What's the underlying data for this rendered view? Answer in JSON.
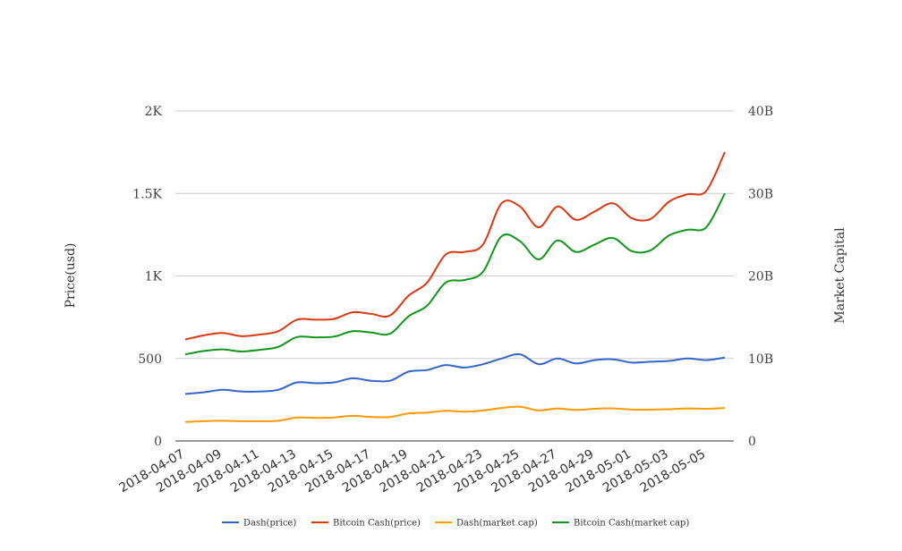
{
  "chart_data": {
    "type": "line",
    "title": "",
    "ylabel_left": "Price(usd)",
    "ylabel_right": "Market Capital",
    "grid": true,
    "legend_position": "bottom",
    "y_left": {
      "range": [
        0,
        2000
      ],
      "ticks": [
        0,
        500,
        1000,
        1500,
        2000
      ],
      "tick_labels": [
        "0",
        "500",
        "1K",
        "1.5K",
        "2K"
      ]
    },
    "y_right": {
      "range": [
        0,
        40000000000
      ],
      "ticks": [
        0,
        10000000000,
        20000000000,
        30000000000,
        40000000000
      ],
      "tick_labels": [
        "0",
        "10B",
        "20B",
        "30B",
        "40B"
      ]
    },
    "x_tick_labels": [
      "2018-04-07",
      "2018-04-09",
      "2018-04-11",
      "2018-04-13",
      "2018-04-15",
      "2018-04-17",
      "2018-04-19",
      "2018-04-21",
      "2018-04-23",
      "2018-04-25",
      "2018-04-27",
      "2018-04-29",
      "2018-05-01",
      "2018-05-03",
      "2018-05-05"
    ],
    "x": [
      "2018-04-07",
      "2018-04-08",
      "2018-04-09",
      "2018-04-10",
      "2018-04-11",
      "2018-04-12",
      "2018-04-13",
      "2018-04-14",
      "2018-04-15",
      "2018-04-16",
      "2018-04-17",
      "2018-04-18",
      "2018-04-19",
      "2018-04-20",
      "2018-04-21",
      "2018-04-22",
      "2018-04-23",
      "2018-04-24",
      "2018-04-25",
      "2018-04-26",
      "2018-04-27",
      "2018-04-28",
      "2018-04-29",
      "2018-04-30",
      "2018-05-01",
      "2018-05-02",
      "2018-05-03",
      "2018-05-04",
      "2018-05-05",
      "2018-05-06"
    ],
    "series": [
      {
        "name": "Dash(price)",
        "axis": "left",
        "color": "#3366cc",
        "values": [
          285,
          295,
          310,
          300,
          300,
          310,
          355,
          350,
          355,
          380,
          365,
          365,
          420,
          430,
          460,
          445,
          465,
          500,
          525,
          465,
          500,
          470,
          490,
          495,
          475,
          480,
          485,
          500,
          490,
          505
        ]
      },
      {
        "name": "Bitcoin Cash(price)",
        "axis": "left",
        "color": "#dc3912",
        "values": [
          615,
          640,
          655,
          635,
          645,
          665,
          735,
          735,
          740,
          780,
          770,
          760,
          880,
          960,
          1130,
          1145,
          1190,
          1440,
          1420,
          1295,
          1420,
          1340,
          1390,
          1440,
          1350,
          1345,
          1450,
          1495,
          1515,
          1750
        ]
      },
      {
        "name": "Dash(market cap)",
        "axis": "right",
        "color": "#ff9900",
        "values": [
          2300000000,
          2400000000,
          2450000000,
          2400000000,
          2400000000,
          2450000000,
          2850000000,
          2800000000,
          2850000000,
          3050000000,
          2900000000,
          2900000000,
          3350000000,
          3450000000,
          3650000000,
          3550000000,
          3700000000,
          4000000000,
          4150000000,
          3700000000,
          3950000000,
          3750000000,
          3900000000,
          3950000000,
          3800000000,
          3800000000,
          3850000000,
          3950000000,
          3900000000,
          4000000000
        ]
      },
      {
        "name": "Bitcoin Cash(market cap)",
        "axis": "right",
        "color": "#109618",
        "values": [
          10500000000,
          10900000000,
          11100000000,
          10850000000,
          11050000000,
          11400000000,
          12600000000,
          12550000000,
          12650000000,
          13300000000,
          13150000000,
          13000000000,
          15100000000,
          16400000000,
          19200000000,
          19500000000,
          20500000000,
          24800000000,
          24200000000,
          22000000000,
          24300000000,
          22900000000,
          23800000000,
          24600000000,
          23000000000,
          23100000000,
          24900000000,
          25600000000,
          25900000000,
          30000000000
        ]
      }
    ]
  }
}
